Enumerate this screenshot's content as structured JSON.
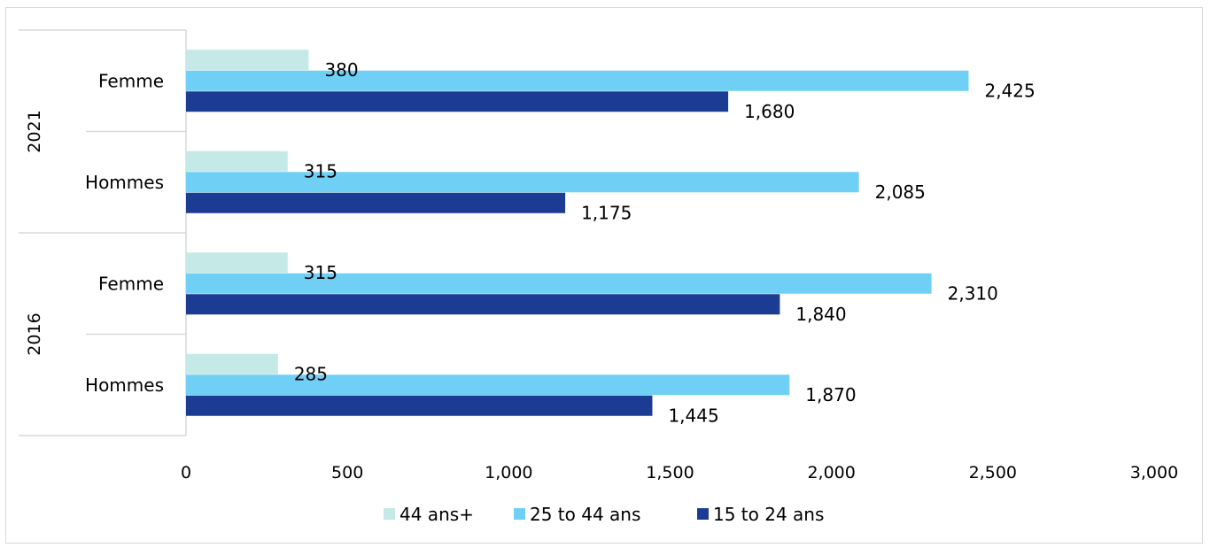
{
  "chart_data": {
    "type": "bar",
    "orientation": "horizontal",
    "title": "",
    "xlabel": "",
    "ylabel": "",
    "xlim": [
      0,
      3000
    ],
    "x_ticks": [
      0,
      500,
      1000,
      1500,
      2000,
      2500,
      3000
    ],
    "x_tick_labels": [
      "0",
      "500",
      "1,000",
      "1,500",
      "2,000",
      "2,500",
      "3,000"
    ],
    "grid": false,
    "legend_position": "bottom",
    "groups": [
      {
        "year": "2021",
        "categories": [
          {
            "label": "Femme",
            "values": [
              380,
              2425,
              1680
            ],
            "value_labels": [
              "380",
              "2,425",
              "1,680"
            ]
          },
          {
            "label": "Hommes",
            "values": [
              315,
              2085,
              1175
            ],
            "value_labels": [
              "315",
              "2,085",
              "1,175"
            ]
          }
        ]
      },
      {
        "year": "2016",
        "categories": [
          {
            "label": "Femme",
            "values": [
              315,
              2310,
              1840
            ],
            "value_labels": [
              "315",
              "2,310",
              "1,840"
            ]
          },
          {
            "label": "Hommes",
            "values": [
              285,
              1870,
              1445
            ],
            "value_labels": [
              "285",
              "1,870",
              "1,445"
            ]
          }
        ]
      }
    ],
    "series": [
      {
        "name": "44 ans+",
        "color": "#c4e9e6"
      },
      {
        "name": "25 to 44 ans",
        "color": "#6fcff5"
      },
      {
        "name": "15 to 24 ans",
        "color": "#1c3c94"
      }
    ]
  }
}
